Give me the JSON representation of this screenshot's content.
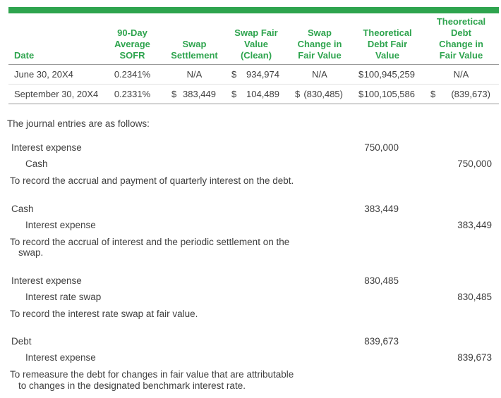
{
  "colors": {
    "accent_green": "#2ea44e",
    "text_dark": "#3f3f3f",
    "border_dark": "#9a9a9a",
    "border_light": "#e2e2e2"
  },
  "table": {
    "columns": [
      {
        "id": "date",
        "lines": [
          "Date"
        ]
      },
      {
        "id": "sofr",
        "lines": [
          "90-Day",
          "Average",
          "SOFR"
        ]
      },
      {
        "id": "swap-settlement",
        "lines": [
          "Swap",
          "Settlement"
        ]
      },
      {
        "id": "swap-fair-value-clean",
        "lines": [
          "Swap Fair",
          "Value",
          "(Clean)"
        ]
      },
      {
        "id": "swap-change-in-fair-value",
        "lines": [
          "Swap",
          "Change in",
          "Fair Value"
        ]
      },
      {
        "id": "theoretical-debt-fair-value",
        "lines": [
          "Theoretical",
          "Debt Fair",
          "Value"
        ]
      },
      {
        "id": "theoretical-debt-change-in-fair-value",
        "lines": [
          "Theoretical",
          "Debt",
          "Change in",
          "Fair Value"
        ]
      }
    ],
    "rows": [
      {
        "date": "June 30, 20X4",
        "sofr": "0.2341%",
        "settlement": {
          "text": "N/A"
        },
        "swap_fv": {
          "cur": "$",
          "amt": "934,974"
        },
        "swap_chg": {
          "text": "N/A"
        },
        "debt_fv": {
          "cur": "$",
          "amt": "100,945,259"
        },
        "debt_chg": {
          "text": "N/A"
        }
      },
      {
        "date": "September 30, 20X4",
        "sofr": "0.2331%",
        "settlement": {
          "cur": "$",
          "amt": "383,449"
        },
        "swap_fv": {
          "cur": "$",
          "amt": "104,489"
        },
        "swap_chg": {
          "cur": "$",
          "amt": "(830,485)"
        },
        "debt_fv": {
          "cur": "$",
          "amt": "100,105,586"
        },
        "debt_chg": {
          "cur": "$",
          "amt": "(839,673)"
        }
      }
    ]
  },
  "journal": {
    "intro": "The journal entries are as follows:",
    "entries": [
      {
        "debit_account": "Interest expense",
        "debit_amount": "750,000",
        "credit_account": "Cash",
        "credit_amount": "750,000",
        "memo_lines": [
          "To record the accrual and payment of quarterly interest on the debt."
        ]
      },
      {
        "debit_account": "Cash",
        "debit_amount": "383,449",
        "credit_account": "Interest expense",
        "credit_amount": "383,449",
        "memo_lines": [
          "To record the accrual of interest and the periodic settlement on the",
          "swap."
        ]
      },
      {
        "debit_account": "Interest expense",
        "debit_amount": "830,485",
        "credit_account": "Interest rate swap",
        "credit_amount": "830,485",
        "memo_lines": [
          "To record the interest rate swap at fair value."
        ]
      },
      {
        "debit_account": "Debt",
        "debit_amount": "839,673",
        "credit_account": "Interest expense",
        "credit_amount": "839,673",
        "memo_lines": [
          "To remeasure the debt for changes in fair value that are attributable",
          "to changes in the designated benchmark interest rate."
        ]
      }
    ]
  }
}
